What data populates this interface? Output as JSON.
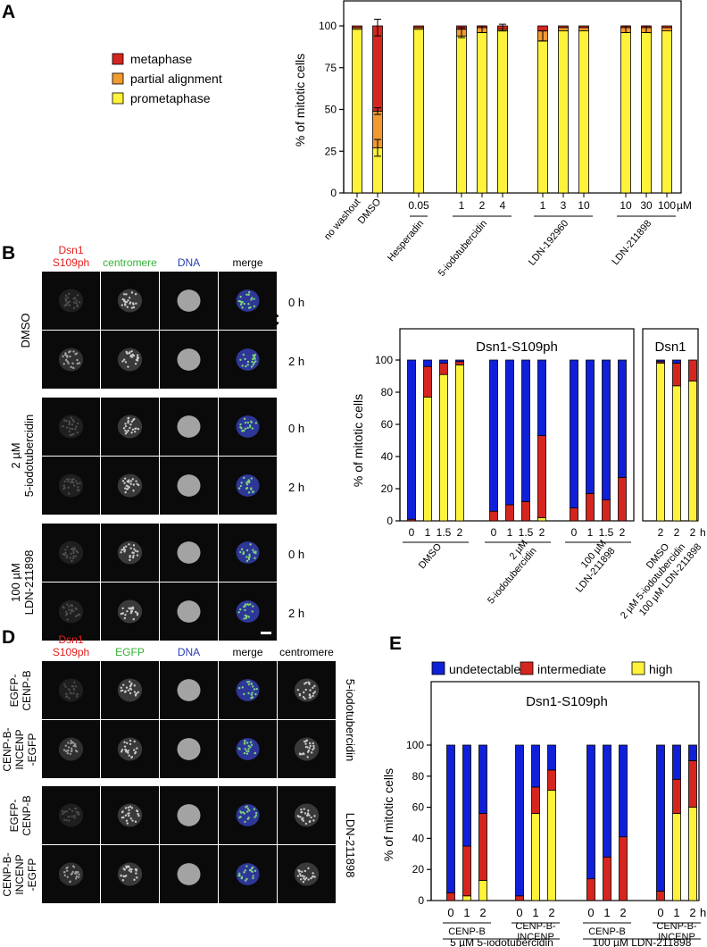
{
  "figure": {
    "panel_letters": [
      "A",
      "B",
      "C",
      "D",
      "E"
    ],
    "colors": {
      "metaphase": "#d4261f",
      "partial": "#f29a2e",
      "prometaphase": "#fff23a",
      "undetectable": "#1020d8",
      "intermediate": "#d4261f",
      "high": "#fff23a"
    }
  },
  "panel_a": {
    "legend": [
      "metaphase",
      "partial alignment",
      "prometaphase"
    ],
    "unit": "µM"
  },
  "panel_b": {
    "channel_labels": [
      "Dsn1\nS109ph",
      "centromere",
      "DNA",
      "merge"
    ],
    "channel_colors": [
      "#e41e1e",
      "#33b233",
      "#2a3fb5",
      "#000000"
    ],
    "rows": [
      {
        "time": "0 h",
        "group": 0
      },
      {
        "time": "2 h",
        "group": 0
      },
      {
        "time": "0 h",
        "group": 1
      },
      {
        "time": "2 h",
        "group": 1
      },
      {
        "time": "0 h",
        "group": 2
      },
      {
        "time": "2 h",
        "group": 2
      }
    ],
    "group_labels": [
      "DMSO",
      "2 µM\n5-iodotubercidin",
      "100 µM\nLDN-211898"
    ]
  },
  "panel_d": {
    "channel_labels": [
      "Dsn1\nS109ph",
      "EGFP",
      "DNA",
      "merge",
      "centromere"
    ],
    "channel_colors": [
      "#e41e1e",
      "#33b233",
      "#2a3fb5",
      "#000000",
      "#000000"
    ],
    "row_labels": [
      "EGFP-\nCENP-B",
      "CENP-B-\nINCENP\n-EGFP",
      "EGFP-\nCENP-B",
      "CENP-B-\nINCENP\n-EGFP"
    ],
    "group_labels": [
      "5-iodotubercidin",
      "LDN-211898"
    ]
  },
  "chart_data": [
    {
      "panel": "A",
      "type": "bar",
      "stacked": true,
      "ylabel": "% of mitotic cells",
      "ylim": [
        0,
        100
      ],
      "yticks": [
        0,
        25,
        50,
        75,
        100
      ],
      "categories": [
        "no washout",
        "DMSO",
        "0.05",
        "1",
        "2",
        "4",
        "1",
        "3",
        "10",
        "10",
        "30",
        "100"
      ],
      "groups": [
        {
          "label": "Hesperadin",
          "members": [
            2
          ]
        },
        {
          "label": "5-iodotubercidin",
          "members": [
            3,
            4,
            5
          ]
        },
        {
          "label": "LDN-192960",
          "members": [
            6,
            7,
            8
          ]
        },
        {
          "label": "LDN-211898",
          "members": [
            9,
            10,
            11
          ]
        }
      ],
      "series": [
        {
          "name": "prometaphase",
          "values": [
            98,
            27,
            98,
            94,
            96,
            97,
            91,
            97,
            97,
            96,
            96,
            97
          ]
        },
        {
          "name": "partial alignment",
          "values": [
            1,
            22,
            1,
            4,
            3,
            1,
            6,
            2,
            2,
            3,
            3,
            2
          ]
        },
        {
          "name": "metaphase",
          "values": [
            1,
            51,
            1,
            2,
            1,
            2,
            3,
            1,
            1,
            1,
            1,
            1
          ]
        }
      ]
    },
    {
      "panel": "C",
      "type": "bar",
      "stacked": true,
      "ylabel": "% of mitotic cells",
      "ylim": [
        0,
        100
      ],
      "yticks": [
        0,
        20,
        40,
        60,
        80,
        100
      ],
      "xunit": "h",
      "box_titles": [
        "Dsn1-S109ph",
        "Dsn1"
      ],
      "categories": [
        "0",
        "1",
        "1.5",
        "2",
        "0",
        "1",
        "1.5",
        "2",
        "0",
        "1",
        "1.5",
        "2",
        "2",
        "2",
        "2"
      ],
      "groups": [
        "DMSO",
        "2 µM\n5-iodotubercidin",
        "100 µM\nLDN-211898",
        "DMSO",
        "2 µM 5-iodotubercidin",
        "100 µM LDN-211898"
      ],
      "series": [
        {
          "name": "high",
          "values": [
            0,
            77,
            91,
            97,
            0,
            0,
            0,
            2,
            0,
            0,
            0,
            0,
            98,
            84,
            87
          ]
        },
        {
          "name": "intermediate",
          "values": [
            1,
            19,
            7,
            2,
            6,
            10,
            12,
            51,
            8,
            17,
            13,
            27,
            1,
            14,
            13
          ]
        },
        {
          "name": "undetectable",
          "values": [
            99,
            4,
            2,
            1,
            94,
            90,
            88,
            47,
            92,
            83,
            87,
            73,
            1,
            2,
            0
          ]
        }
      ]
    },
    {
      "panel": "E",
      "type": "bar",
      "stacked": true,
      "ylabel": "% of mitotic cells",
      "ylim": [
        0,
        100
      ],
      "yticks": [
        0,
        20,
        40,
        60,
        80,
        100
      ],
      "xunit": "h",
      "box_title": "Dsn1-S109ph",
      "legend": [
        "undetectable",
        "intermediate",
        "high"
      ],
      "categories": [
        "0",
        "1",
        "2",
        "0",
        "1",
        "2",
        "0",
        "1",
        "2",
        "0",
        "1",
        "2"
      ],
      "groups": [
        "CENP-B",
        "CENP-B-\nINCENP",
        "CENP-B",
        "CENP-B-\nINCENP"
      ],
      "drug_labels": [
        "5 µM 5-iodotubercidin",
        "100 µM LDN-211898"
      ],
      "series": [
        {
          "name": "high",
          "values": [
            0,
            3,
            13,
            0,
            56,
            71,
            0,
            0,
            0,
            0,
            56,
            60
          ]
        },
        {
          "name": "intermediate",
          "values": [
            5,
            32,
            43,
            3,
            17,
            13,
            14,
            28,
            41,
            6,
            22,
            30
          ]
        },
        {
          "name": "undetectable",
          "values": [
            95,
            65,
            44,
            97,
            27,
            16,
            86,
            72,
            59,
            94,
            22,
            10
          ]
        }
      ]
    }
  ]
}
